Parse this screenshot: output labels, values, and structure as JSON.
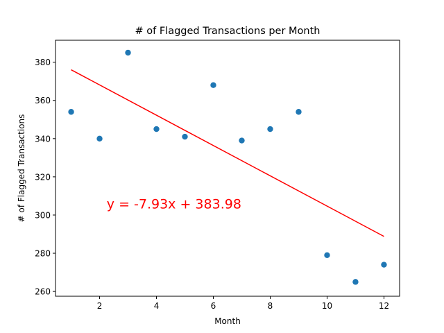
{
  "chart_data": {
    "type": "scatter",
    "title": "# of Flagged Transactions per Month",
    "xlabel": "Month",
    "ylabel": "# of Flagged Transactions",
    "xlim": [
      0.45,
      12.55
    ],
    "ylim": [
      257.5,
      391.5
    ],
    "xticks": [
      2,
      4,
      6,
      8,
      10,
      12
    ],
    "yticks": [
      260,
      280,
      300,
      320,
      340,
      360,
      380
    ],
    "grid": false,
    "colors": {
      "points": "#1f77b4",
      "trendline": "#ff0000",
      "equation": "#ff0000"
    },
    "series": [
      {
        "x": [
          1,
          2,
          3,
          4,
          5,
          6,
          7,
          8,
          9,
          10,
          11,
          12
        ],
        "y": [
          354,
          340,
          385,
          345,
          341,
          368,
          339,
          345,
          354,
          279,
          265,
          274
        ]
      }
    ],
    "trendline": {
      "slope": -7.93,
      "intercept": 383.98,
      "x_range": [
        1,
        12
      ]
    },
    "annotation": {
      "text": "y = -7.93x + 383.98",
      "x": 2.25,
      "y": 306
    }
  }
}
